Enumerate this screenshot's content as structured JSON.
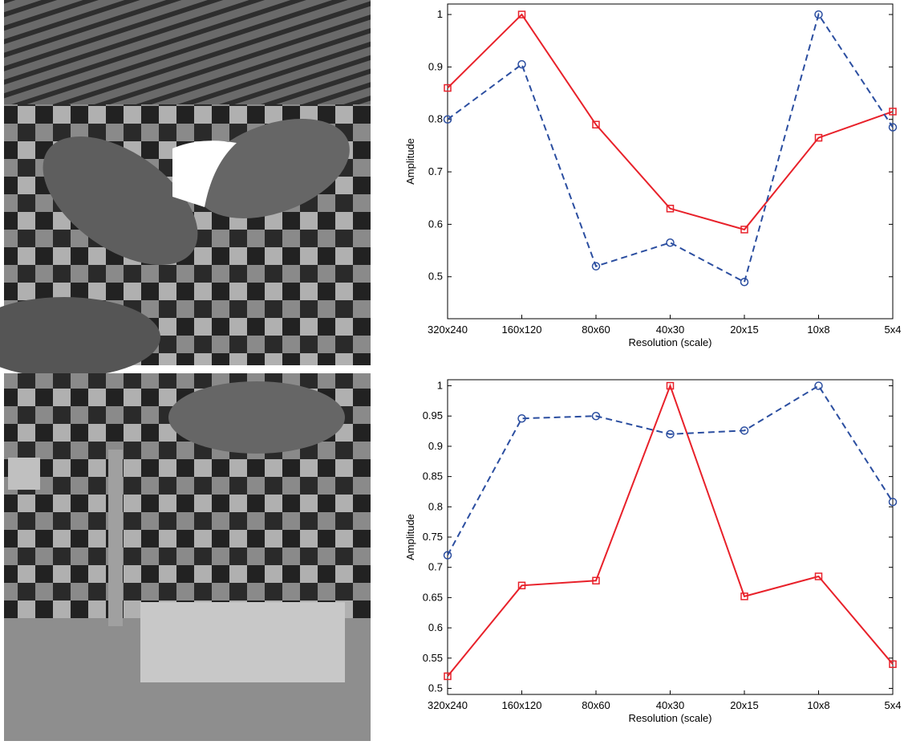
{
  "chart_data": [
    {
      "type": "line",
      "xlabel": "Resolution (scale)",
      "ylabel": "Amplitude",
      "categories": [
        "320x240",
        "160x120",
        "80x60",
        "40x30",
        "20x15",
        "10x8",
        "5x4"
      ],
      "ylim": [
        0.42,
        1.02
      ],
      "yticks": [
        0.5,
        0.6,
        0.7,
        0.8,
        0.9,
        1
      ],
      "series": [
        {
          "color": "#e8212a",
          "dash": false,
          "marker": "square",
          "values": [
            0.86,
            1.0,
            0.79,
            0.63,
            0.59,
            0.765,
            0.815
          ]
        },
        {
          "color": "#2b4ea0",
          "dash": true,
          "marker": "circle",
          "values": [
            0.8,
            0.905,
            0.52,
            0.565,
            0.49,
            1.0,
            0.785
          ]
        }
      ]
    },
    {
      "type": "line",
      "xlabel": "Resolution (scale)",
      "ylabel": "Amplitude",
      "categories": [
        "320x240",
        "160x120",
        "80x60",
        "40x30",
        "20x15",
        "10x8",
        "5x4"
      ],
      "ylim": [
        0.49,
        1.01
      ],
      "yticks": [
        0.5,
        0.55,
        0.6,
        0.65,
        0.7,
        0.75,
        0.8,
        0.85,
        0.9,
        0.95,
        1
      ],
      "series": [
        {
          "color": "#e8212a",
          "dash": false,
          "marker": "square",
          "values": [
            0.52,
            0.67,
            0.678,
            1.0,
            0.652,
            0.685,
            0.54
          ]
        },
        {
          "color": "#2b4ea0",
          "dash": true,
          "marker": "circle",
          "values": [
            0.72,
            0.946,
            0.95,
            0.92,
            0.926,
            1.0,
            0.808
          ]
        }
      ]
    }
  ]
}
